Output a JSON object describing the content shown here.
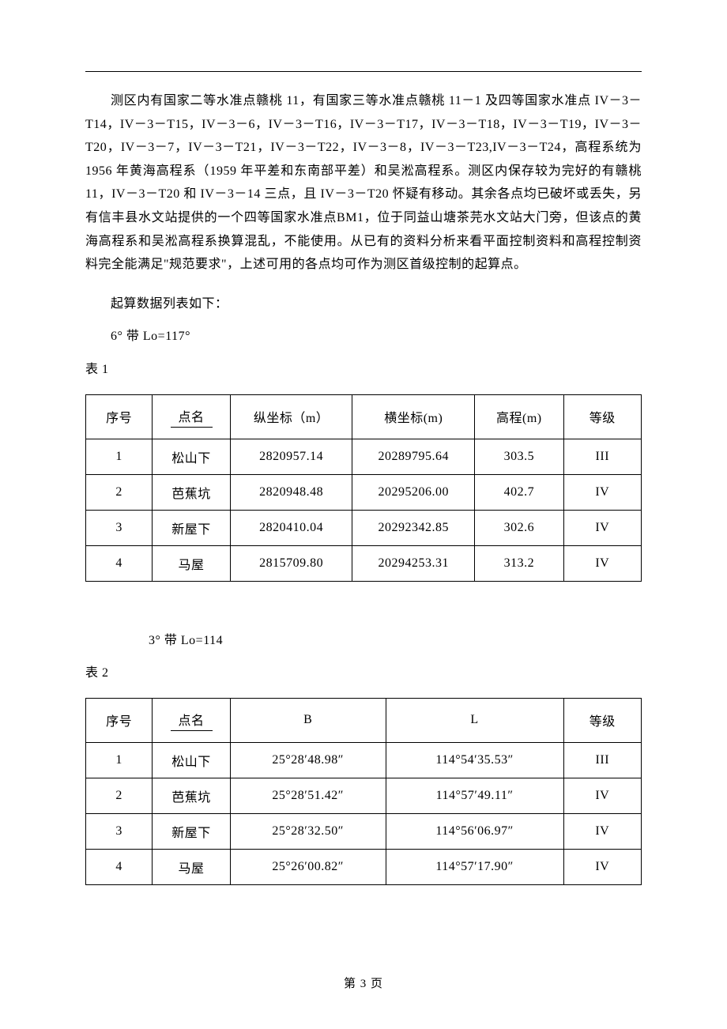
{
  "paragraph1": "测区内有国家二等水准点赣桃 11，有国家三等水准点赣桃 11－1 及四等国家水准点 IV－3－T14，IV－3－T15，IV－3－6，IV－3－T16，IV－3－T17，IV－3－T18，IV－3－T19，IV－3－T20，IV－3－7，IV－3－T21，IV－3－T22，IV－3－8，IV－3－T23,IV－3－T24，高程系统为 1956 年黄海高程系（1959 年平差和东南部平差）和吴淞高程系。测区内保存较为完好的有赣桃 11，IV－3－T20 和 IV－3－14 三点，且 IV－3－T20 怀疑有移动。其余各点均已破坏或丢失，另有信丰县水文站提供的一个四等国家水准点BM1，位于同益山塘茶芫水文站大门旁，但该点的黄海高程系和吴淞高程系换算混乱，不能使用。从已有的资料分析来看平面控制资料和高程控制资料完全能满足\"规范要求\"，上述可用的各点均可作为测区首级控制的起算点。",
  "line_qsz": "起算数据列表如下：",
  "line_6d": "6° 带 Lo=117°",
  "table1_label": "表 1",
  "table1": {
    "columns": [
      "序号",
      "点名",
      "纵坐标（m）",
      "横坐标(m)",
      "高程(m)",
      "等级"
    ],
    "col_widths": [
      "12%",
      "14%",
      "22%",
      "22%",
      "16%",
      "14%"
    ],
    "rows": [
      [
        "1",
        "松山下",
        "2820957.14",
        "20289795.64",
        "303.5",
        "III"
      ],
      [
        "2",
        "芭蕉坑",
        "2820948.48",
        "20295206.00",
        "402.7",
        "IV"
      ],
      [
        "3",
        "新屋下",
        "2820410.04",
        "20292342.85",
        "302.6",
        "IV"
      ],
      [
        "4",
        "马屋",
        "2815709.80",
        "20294253.31",
        "313.2",
        "IV"
      ]
    ]
  },
  "line_3d": "3° 带 Lo=114",
  "table2_label": "表 2",
  "table2": {
    "columns": [
      "序号",
      "点名",
      "B",
      "L",
      "等级"
    ],
    "col_widths": [
      "12%",
      "14%",
      "28%",
      "32%",
      "14%"
    ],
    "rows": [
      [
        "1",
        "松山下",
        "25°28′48.98″",
        "114°54′35.53″",
        "III"
      ],
      [
        "2",
        "芭蕉坑",
        "25°28′51.42″",
        "114°57′49.11″",
        "IV"
      ],
      [
        "3",
        "新屋下",
        "25°28′32.50″",
        "114°56′06.97″",
        "IV"
      ],
      [
        "4",
        "马屋",
        "25°26′00.82″",
        "114°57′17.90″",
        "IV"
      ]
    ]
  },
  "footer": "第 3 页"
}
